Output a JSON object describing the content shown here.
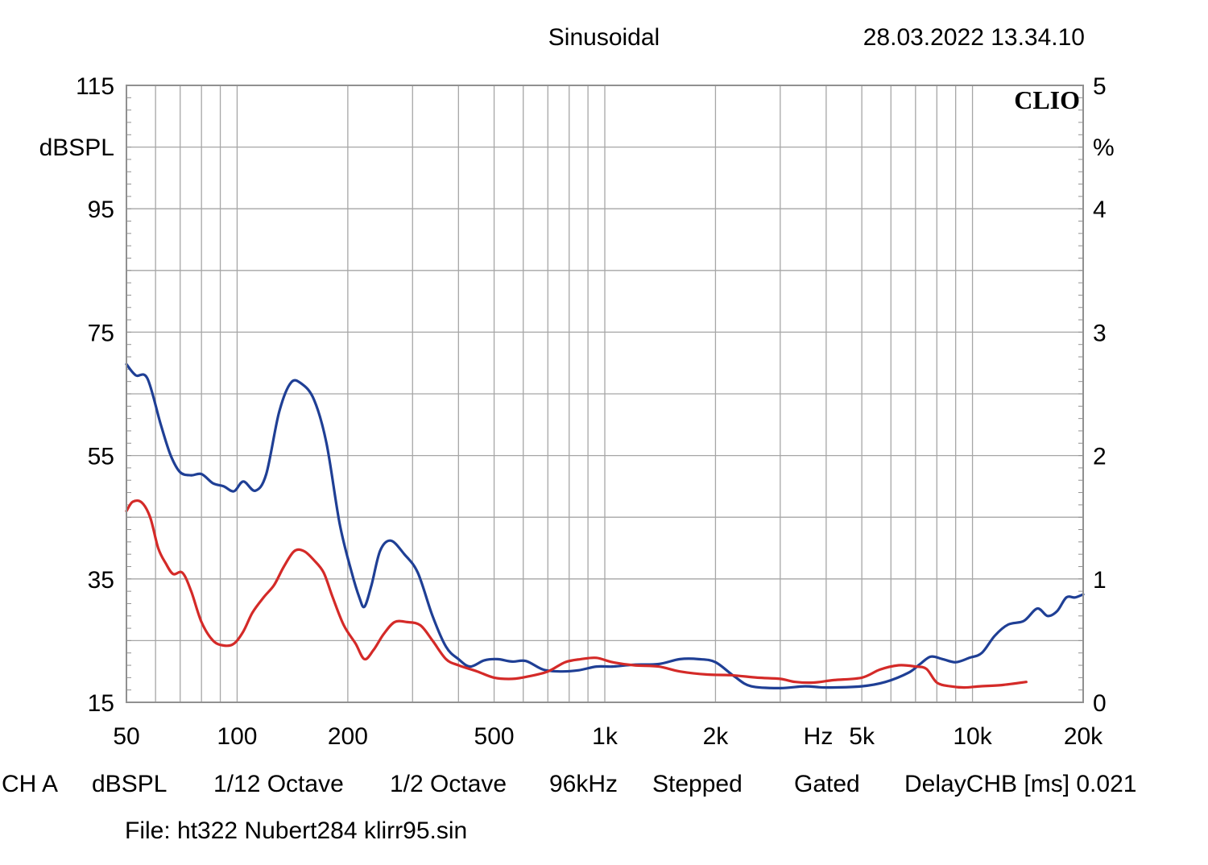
{
  "header": {
    "mode": "Sinusoidal",
    "timestamp": "28.03.2022 13.34.10"
  },
  "brand": "CLIO",
  "footer": {
    "settings": [
      "CH A",
      "dBSPL",
      "1/12 Octave",
      "1/2 Octave",
      "96kHz",
      "Stepped",
      "Gated",
      "DelayCHB [ms] 0.021"
    ],
    "file": "File: ht322 Nubert284 klirr95.sin"
  },
  "chart_data": {
    "type": "line",
    "xscale": "log",
    "xlim": [
      50,
      20000
    ],
    "ylim_left": [
      15,
      115
    ],
    "ylim_right": [
      0,
      5
    ],
    "left_unit": "dBSPL",
    "right_unit": "%",
    "x_unit": "Hz",
    "grid": true,
    "left_ticks": [
      "115",
      "95",
      "75",
      "55",
      "35",
      "15"
    ],
    "right_ticks": [
      "5",
      "4",
      "3",
      "2",
      "1",
      "0"
    ],
    "x_ticks": [
      {
        "value": 50,
        "label": "50"
      },
      {
        "value": 100,
        "label": "100"
      },
      {
        "value": 200,
        "label": "200"
      },
      {
        "value": 500,
        "label": "500"
      },
      {
        "value": 1000,
        "label": "1k"
      },
      {
        "value": 2000,
        "label": "2k"
      },
      {
        "value": 5000,
        "label": "5k"
      },
      {
        "value": 10000,
        "label": "10k"
      },
      {
        "value": 20000,
        "label": "20k"
      }
    ],
    "series": [
      {
        "color": "#1f3f95",
        "axis": "left",
        "points": [
          [
            50,
            69.8
          ],
          [
            53,
            68
          ],
          [
            57,
            67.5
          ],
          [
            62,
            60
          ],
          [
            66,
            55
          ],
          [
            70,
            52.3
          ],
          [
            75,
            51.8
          ],
          [
            80,
            52
          ],
          [
            86,
            50.5
          ],
          [
            92,
            50
          ],
          [
            98,
            49.2
          ],
          [
            104,
            50.8
          ],
          [
            112,
            49.3
          ],
          [
            120,
            52
          ],
          [
            130,
            62
          ],
          [
            140,
            66.8
          ],
          [
            150,
            66.6
          ],
          [
            162,
            64
          ],
          [
            175,
            57
          ],
          [
            190,
            44
          ],
          [
            205,
            36
          ],
          [
            215,
            32
          ],
          [
            222,
            30.5
          ],
          [
            232,
            34
          ],
          [
            245,
            39.6
          ],
          [
            262,
            41.2
          ],
          [
            285,
            39
          ],
          [
            310,
            36
          ],
          [
            340,
            29
          ],
          [
            370,
            24
          ],
          [
            400,
            22
          ],
          [
            430,
            20.8
          ],
          [
            470,
            21.8
          ],
          [
            510,
            22
          ],
          [
            560,
            21.6
          ],
          [
            610,
            21.7
          ],
          [
            680,
            20.3
          ],
          [
            760,
            20
          ],
          [
            850,
            20.2
          ],
          [
            950,
            20.8
          ],
          [
            1050,
            20.8
          ],
          [
            1200,
            21.1
          ],
          [
            1400,
            21.2
          ],
          [
            1600,
            22
          ],
          [
            1800,
            22
          ],
          [
            2000,
            21.5
          ],
          [
            2250,
            19.2
          ],
          [
            2500,
            17.6
          ],
          [
            3000,
            17.3
          ],
          [
            3500,
            17.6
          ],
          [
            4000,
            17.4
          ],
          [
            5000,
            17.6
          ],
          [
            5800,
            18.3
          ],
          [
            6700,
            19.8
          ],
          [
            7200,
            21.2
          ],
          [
            7700,
            22.4
          ],
          [
            8300,
            22
          ],
          [
            9000,
            21.5
          ],
          [
            9800,
            22.2
          ],
          [
            10600,
            23
          ],
          [
            11500,
            25.8
          ],
          [
            12500,
            27.6
          ],
          [
            13800,
            28.2
          ],
          [
            15000,
            30.2
          ],
          [
            16000,
            29
          ],
          [
            17000,
            29.8
          ],
          [
            18000,
            32
          ],
          [
            19000,
            32
          ],
          [
            20000,
            32.5
          ]
        ]
      },
      {
        "color": "#d42a28",
        "axis": "left",
        "points": [
          [
            50,
            46
          ],
          [
            52,
            47.5
          ],
          [
            55,
            47.4
          ],
          [
            58,
            45
          ],
          [
            61,
            40
          ],
          [
            64,
            37.5
          ],
          [
            67,
            35.8
          ],
          [
            71,
            36
          ],
          [
            75,
            33
          ],
          [
            80,
            28
          ],
          [
            86,
            25
          ],
          [
            92,
            24.2
          ],
          [
            98,
            24.5
          ],
          [
            104,
            26.5
          ],
          [
            110,
            29.5
          ],
          [
            118,
            32
          ],
          [
            126,
            34
          ],
          [
            134,
            37
          ],
          [
            143,
            39.5
          ],
          [
            152,
            39.5
          ],
          [
            162,
            38
          ],
          [
            172,
            36
          ],
          [
            182,
            32
          ],
          [
            195,
            27.5
          ],
          [
            210,
            24.5
          ],
          [
            222,
            22
          ],
          [
            235,
            23.5
          ],
          [
            250,
            26
          ],
          [
            268,
            28
          ],
          [
            290,
            28
          ],
          [
            315,
            27.5
          ],
          [
            340,
            25
          ],
          [
            370,
            22
          ],
          [
            400,
            21
          ],
          [
            450,
            20
          ],
          [
            500,
            19
          ],
          [
            560,
            18.8
          ],
          [
            620,
            19.2
          ],
          [
            700,
            20
          ],
          [
            780,
            21.5
          ],
          [
            860,
            22
          ],
          [
            950,
            22.2
          ],
          [
            1050,
            21.5
          ],
          [
            1200,
            21
          ],
          [
            1400,
            20.8
          ],
          [
            1600,
            20
          ],
          [
            1900,
            19.5
          ],
          [
            2200,
            19.4
          ],
          [
            2600,
            19
          ],
          [
            3000,
            18.8
          ],
          [
            3300,
            18.3
          ],
          [
            3700,
            18.2
          ],
          [
            4200,
            18.6
          ],
          [
            5000,
            19
          ],
          [
            5600,
            20.3
          ],
          [
            6300,
            21
          ],
          [
            7000,
            20.8
          ],
          [
            7500,
            20.4
          ],
          [
            8000,
            18.2
          ],
          [
            8700,
            17.6
          ],
          [
            9500,
            17.4
          ],
          [
            10500,
            17.6
          ],
          [
            12000,
            17.8
          ],
          [
            14000,
            18.3
          ]
        ]
      }
    ]
  }
}
